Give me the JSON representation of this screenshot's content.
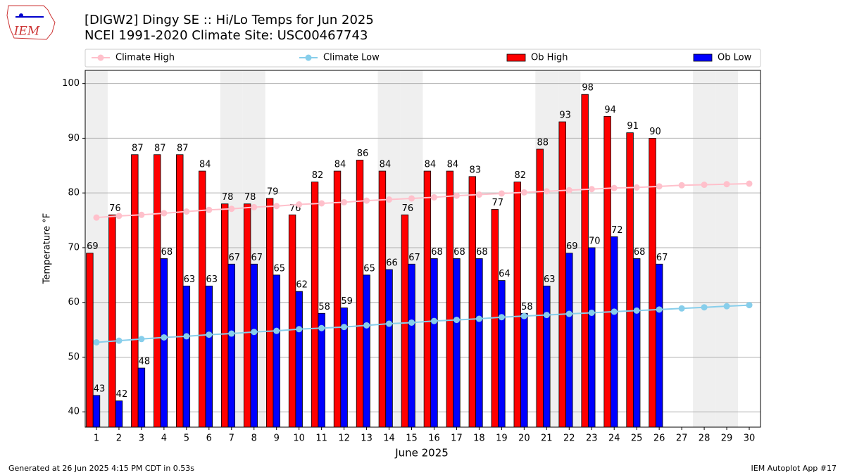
{
  "chart_data": {
    "type": "bar",
    "title": "[DIGW2] Dingy SE :: Hi/Lo Temps for Jun 2025",
    "subtitle": "NCEI 1991-2020 Climate Site: USC00467743",
    "x_label": "June 2025",
    "y_label": "Temperature °F",
    "logo_text": "IEM",
    "footer_left": "Generated at 26 Jun 2025 4:15 PM CDT in 0.53s",
    "footer_right": "IEM Autoplot App #17",
    "categories": [
      "1",
      "2",
      "3",
      "4",
      "5",
      "6",
      "7",
      "8",
      "9",
      "10",
      "11",
      "12",
      "13",
      "14",
      "15",
      "16",
      "17",
      "18",
      "19",
      "20",
      "21",
      "22",
      "23",
      "24",
      "25",
      "26",
      "27",
      "28",
      "29",
      "30"
    ],
    "shaded_days": [
      "1",
      "7",
      "8",
      "14",
      "15",
      "21",
      "22",
      "28",
      "29"
    ],
    "shade_color": "#efefef",
    "ylim": [
      37.2,
      102.4
    ],
    "yticks": [
      40,
      50,
      60,
      70,
      80,
      90,
      100
    ],
    "grid": true,
    "series": [
      {
        "name": "Climate High",
        "kind": "line",
        "color": "#ffc0cb",
        "values": [
          75.5,
          75.8,
          76.0,
          76.3,
          76.6,
          76.9,
          77.1,
          77.4,
          77.6,
          77.9,
          78.1,
          78.3,
          78.6,
          78.8,
          79.0,
          79.2,
          79.5,
          79.7,
          79.9,
          80.1,
          80.3,
          80.5,
          80.7,
          80.9,
          81.0,
          81.2,
          81.4,
          81.5,
          81.6,
          81.7
        ]
      },
      {
        "name": "Climate Low",
        "kind": "line",
        "color": "#87ceeb",
        "values": [
          52.7,
          53.0,
          53.3,
          53.6,
          53.8,
          54.1,
          54.3,
          54.6,
          54.8,
          55.1,
          55.3,
          55.5,
          55.8,
          56.1,
          56.3,
          56.6,
          56.8,
          57.0,
          57.3,
          57.5,
          57.7,
          57.9,
          58.1,
          58.3,
          58.5,
          58.7,
          58.9,
          59.1,
          59.3,
          59.5
        ]
      },
      {
        "name": "Ob High",
        "kind": "bar",
        "color": "#ff0000",
        "values": [
          69,
          76,
          87,
          87,
          87,
          84,
          78,
          78,
          79,
          76,
          82,
          84,
          86,
          84,
          76,
          84,
          84,
          83,
          77,
          82,
          88,
          93,
          98,
          94,
          91,
          90,
          null,
          null,
          null,
          null
        ]
      },
      {
        "name": "Ob Low",
        "kind": "bar",
        "color": "#0000ff",
        "values": [
          43,
          42,
          48,
          68,
          63,
          63,
          67,
          67,
          65,
          62,
          58,
          59,
          65,
          66,
          67,
          68,
          68,
          68,
          64,
          58,
          63,
          69,
          70,
          72,
          68,
          67,
          null,
          null,
          null,
          null
        ]
      }
    ]
  }
}
